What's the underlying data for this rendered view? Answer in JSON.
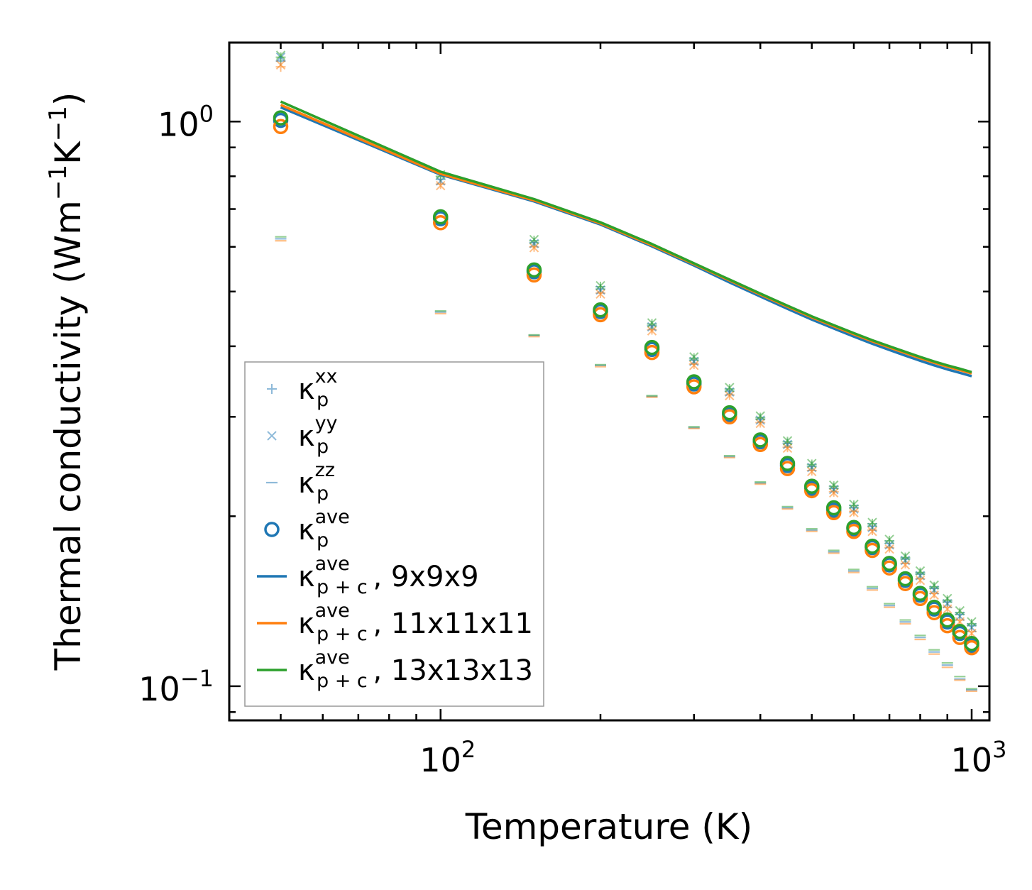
{
  "chart_data": {
    "type": "scatter",
    "title": "",
    "xlabel": "Temperature (K)",
    "ylabel": "Thermal conductivity (Wm⁻¹K⁻¹)",
    "xscale": "log",
    "yscale": "log",
    "xlim": [
      40,
      1080
    ],
    "ylim": [
      0.087,
      1.38
    ],
    "x_ticks": [
      {
        "value": 100,
        "base": "10",
        "exp": "2"
      },
      {
        "value": 1000,
        "base": "10",
        "exp": "3"
      }
    ],
    "y_ticks": [
      {
        "value": 1.0,
        "base": "10",
        "exp": "0"
      },
      {
        "value": 0.1,
        "base": "10",
        "exp": "−1"
      }
    ],
    "legend_position": "lower-left",
    "x": [
      50,
      100,
      150,
      200,
      250,
      300,
      350,
      400,
      450,
      500,
      550,
      600,
      650,
      700,
      750,
      800,
      850,
      900,
      950,
      1000
    ],
    "series": [
      {
        "name": "κ_p^xx (9x9x9)",
        "group": "9x9x9",
        "kind": "xx",
        "color": "#1f77b4",
        "values": [
          1.28,
          0.79,
          0.61,
          0.505,
          0.435,
          0.378,
          0.333,
          0.297,
          0.269,
          0.245,
          0.224,
          0.207,
          0.192,
          0.179,
          0.168,
          0.158,
          0.149,
          0.141,
          0.134,
          0.128
        ]
      },
      {
        "name": "κ_p^xx (11x11x11)",
        "group": "11x11x11",
        "kind": "xx",
        "color": "#ff7f0e",
        "values": [
          1.25,
          0.775,
          0.6,
          0.497,
          0.428,
          0.372,
          0.328,
          0.293,
          0.265,
          0.241,
          0.221,
          0.204,
          0.189,
          0.176,
          0.165,
          0.155,
          0.146,
          0.138,
          0.131,
          0.125
        ]
      },
      {
        "name": "κ_p^xx (13x13x13)",
        "group": "13x13x13",
        "kind": "xx",
        "color": "#2ca02c",
        "values": [
          1.3,
          0.8,
          0.615,
          0.51,
          0.438,
          0.381,
          0.336,
          0.299,
          0.271,
          0.247,
          0.226,
          0.209,
          0.194,
          0.181,
          0.169,
          0.159,
          0.15,
          0.142,
          0.135,
          0.129
        ]
      },
      {
        "name": "κ_p^yy (9x9x9)",
        "group": "9x9x9",
        "kind": "yy",
        "color": "#1f77b4",
        "values": [
          1.3,
          0.785,
          0.608,
          0.503,
          0.433,
          0.376,
          0.332,
          0.296,
          0.268,
          0.244,
          0.223,
          0.206,
          0.191,
          0.178,
          0.167,
          0.157,
          0.148,
          0.14,
          0.133,
          0.127
        ]
      },
      {
        "name": "κ_p^yy (11x11x11)",
        "group": "11x11x11",
        "kind": "yy",
        "color": "#ff7f0e",
        "values": [
          1.26,
          0.77,
          0.598,
          0.495,
          0.426,
          0.37,
          0.327,
          0.292,
          0.264,
          0.24,
          0.22,
          0.203,
          0.188,
          0.175,
          0.164,
          0.154,
          0.145,
          0.137,
          0.13,
          0.124
        ]
      },
      {
        "name": "κ_p^yy (13x13x13)",
        "group": "13x13x13",
        "kind": "yy",
        "color": "#2ca02c",
        "values": [
          1.31,
          0.805,
          0.618,
          0.512,
          0.44,
          0.383,
          0.338,
          0.301,
          0.272,
          0.248,
          0.227,
          0.21,
          0.195,
          0.182,
          0.17,
          0.16,
          0.151,
          0.143,
          0.136,
          0.13
        ]
      },
      {
        "name": "κ_p^zz (9x9x9)",
        "group": "9x9x9",
        "kind": "zz",
        "color": "#1f77b4",
        "values": [
          0.62,
          0.46,
          0.418,
          0.37,
          0.326,
          0.287,
          0.255,
          0.229,
          0.207,
          0.189,
          0.173,
          0.16,
          0.149,
          0.139,
          0.13,
          0.122,
          0.115,
          0.109,
          0.103,
          0.0985
        ]
      },
      {
        "name": "κ_p^zz (11x11x11)",
        "group": "11x11x11",
        "kind": "zz",
        "color": "#ff7f0e",
        "values": [
          0.615,
          0.457,
          0.416,
          0.368,
          0.325,
          0.286,
          0.254,
          0.228,
          0.206,
          0.188,
          0.172,
          0.159,
          0.148,
          0.138,
          0.129,
          0.121,
          0.114,
          0.108,
          0.1025,
          0.098
        ]
      },
      {
        "name": "κ_p^zz (13x13x13)",
        "group": "13x13x13",
        "kind": "zz",
        "color": "#2ca02c",
        "values": [
          0.625,
          0.462,
          0.419,
          0.371,
          0.327,
          0.288,
          0.256,
          0.23,
          0.208,
          0.19,
          0.174,
          0.161,
          0.15,
          0.14,
          0.131,
          0.123,
          0.116,
          0.11,
          0.104,
          0.099
        ]
      },
      {
        "name": "κ_p^ave (9x9x9)",
        "group": "9x9x9",
        "kind": "ave",
        "color": "#1f77b4",
        "values": [
          1.005,
          0.673,
          0.542,
          0.461,
          0.395,
          0.343,
          0.303,
          0.271,
          0.246,
          0.224,
          0.205,
          0.19,
          0.176,
          0.164,
          0.154,
          0.145,
          0.137,
          0.13,
          0.124,
          0.118
        ]
      },
      {
        "name": "κ_p^ave (11x11x11)",
        "group": "11x11x11",
        "kind": "ave",
        "color": "#ff7f0e",
        "values": [
          0.98,
          0.662,
          0.535,
          0.455,
          0.39,
          0.339,
          0.3,
          0.268,
          0.243,
          0.222,
          0.203,
          0.188,
          0.174,
          0.162,
          0.152,
          0.143,
          0.135,
          0.128,
          0.122,
          0.117
        ]
      },
      {
        "name": "κ_p^ave (13x13x13)",
        "group": "13x13x13",
        "kind": "ave",
        "color": "#2ca02c",
        "values": [
          1.015,
          0.678,
          0.546,
          0.464,
          0.398,
          0.346,
          0.305,
          0.273,
          0.248,
          0.226,
          0.207,
          0.191,
          0.177,
          0.165,
          0.155,
          0.146,
          0.138,
          0.131,
          0.125,
          0.119
        ]
      },
      {
        "name": "κ_p+c^ave, 9x9x9",
        "group": "9x9x9",
        "kind": "total",
        "color": "#1f77b4",
        "values": [
          1.06,
          0.805,
          0.722,
          0.657,
          0.601,
          0.556,
          0.519,
          0.49,
          0.466,
          0.446,
          0.43,
          0.416,
          0.404,
          0.394,
          0.385,
          0.377,
          0.37,
          0.364,
          0.359,
          0.354
        ]
      },
      {
        "name": "κ_p+c^ave, 11x11x11",
        "group": "11x11x11",
        "kind": "total",
        "color": "#ff7f0e",
        "values": [
          1.07,
          0.808,
          0.725,
          0.66,
          0.604,
          0.559,
          0.523,
          0.494,
          0.47,
          0.45,
          0.434,
          0.42,
          0.408,
          0.398,
          0.389,
          0.381,
          0.374,
          0.368,
          0.363,
          0.358
        ]
      },
      {
        "name": "κ_p+c^ave, 13x13x13",
        "group": "13x13x13",
        "kind": "total",
        "color": "#2ca02c",
        "values": [
          1.085,
          0.815,
          0.729,
          0.663,
          0.607,
          0.561,
          0.525,
          0.496,
          0.472,
          0.452,
          0.436,
          0.422,
          0.41,
          0.4,
          0.391,
          0.383,
          0.376,
          0.37,
          0.365,
          0.36
        ]
      }
    ],
    "legend": [
      {
        "kind": "xx",
        "marker": "plus",
        "color": "#1f77b4",
        "alpha": 0.5,
        "base": "κ",
        "sup": "xx",
        "sub": "p",
        "suffix": ""
      },
      {
        "kind": "yy",
        "marker": "x",
        "color": "#1f77b4",
        "alpha": 0.5,
        "base": "κ",
        "sup": "yy",
        "sub": "p",
        "suffix": ""
      },
      {
        "kind": "zz",
        "marker": "hline",
        "color": "#1f77b4",
        "alpha": 0.5,
        "base": "κ",
        "sup": "zz",
        "sub": "p",
        "suffix": ""
      },
      {
        "kind": "ave",
        "marker": "circle",
        "color": "#1f77b4",
        "alpha": 1,
        "base": "κ",
        "sup": "ave",
        "sub": "p",
        "suffix": ""
      },
      {
        "kind": "total",
        "marker": "line",
        "color": "#1f77b4",
        "alpha": 1,
        "base": "κ",
        "sup": "ave",
        "sub": "p + c",
        "suffix": ", 9x9x9"
      },
      {
        "kind": "total",
        "marker": "line",
        "color": "#ff7f0e",
        "alpha": 1,
        "base": "κ",
        "sup": "ave",
        "sub": "p + c",
        "suffix": ", 11x11x11"
      },
      {
        "kind": "total",
        "marker": "line",
        "color": "#2ca02c",
        "alpha": 1,
        "base": "κ",
        "sup": "ave",
        "sub": "p + c",
        "suffix": ", 13x13x13"
      }
    ]
  }
}
